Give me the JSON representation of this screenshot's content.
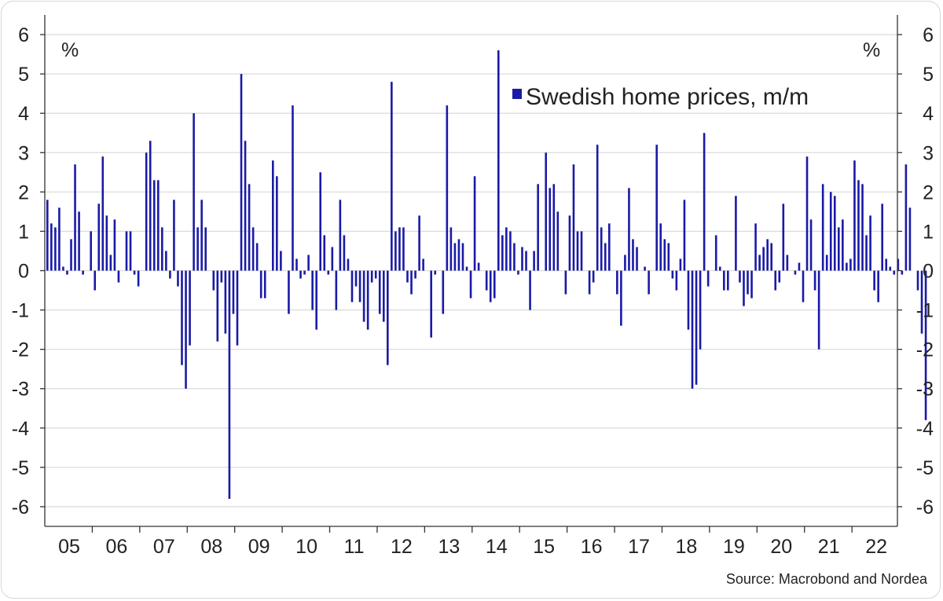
{
  "chart_data": {
    "type": "bar",
    "unit_left": "%",
    "unit_right": "%",
    "source": "Source: Macrobond and Nordea",
    "ylim": [
      -6.5,
      6.5
    ],
    "y_ticks": [
      6,
      5,
      4,
      3,
      2,
      1,
      0,
      -1,
      -2,
      -3,
      -4,
      -5,
      -6
    ],
    "x_tick_labels": [
      "05",
      "06",
      "07",
      "08",
      "09",
      "10",
      "11",
      "12",
      "13",
      "14",
      "15",
      "16",
      "17",
      "18",
      "19",
      "20",
      "21",
      "22"
    ],
    "grid": true,
    "legend_position": "top-right",
    "bar_color": "#1a1aa6",
    "series": [
      {
        "name": "Swedish home prices, m/m",
        "start": "2005-01",
        "values": [
          1.8,
          1.2,
          1.1,
          1.6,
          0.1,
          -0.1,
          0.8,
          2.7,
          1.5,
          -0.1,
          0.0,
          1.0,
          -0.5,
          1.7,
          2.9,
          1.4,
          0.4,
          1.3,
          -0.3,
          0.0,
          1.0,
          1.0,
          -0.1,
          -0.4,
          0.0,
          3.0,
          3.3,
          2.3,
          2.3,
          1.1,
          0.5,
          -0.2,
          1.8,
          -0.4,
          -2.4,
          -3.0,
          -1.9,
          4.0,
          1.1,
          1.8,
          1.1,
          0.0,
          -0.5,
          -1.8,
          -0.3,
          -1.6,
          -5.8,
          -1.1,
          -1.9,
          5.0,
          3.3,
          2.2,
          1.1,
          0.7,
          -0.7,
          -0.7,
          0.0,
          2.8,
          2.4,
          0.5,
          0.0,
          -1.1,
          4.2,
          0.3,
          -0.2,
          -0.1,
          0.4,
          -1.0,
          -1.5,
          2.5,
          0.9,
          -0.1,
          0.6,
          -1.0,
          1.8,
          0.9,
          0.3,
          -0.8,
          -0.4,
          -0.8,
          -1.3,
          -1.5,
          -0.3,
          -0.2,
          -1.1,
          -1.3,
          -2.4,
          4.8,
          1.0,
          1.1,
          1.1,
          -0.3,
          -0.6,
          -0.2,
          1.4,
          0.3,
          0.0,
          -1.7,
          -0.1,
          0.0,
          -1.1,
          4.2,
          1.1,
          0.7,
          0.8,
          0.7,
          0.1,
          -0.7,
          2.4,
          0.2,
          0.0,
          -0.5,
          -0.8,
          -0.7,
          5.6,
          0.9,
          1.1,
          1.0,
          0.7,
          -0.1,
          0.6,
          0.5,
          -1.0,
          0.5,
          2.2,
          0.0,
          3.0,
          2.1,
          2.2,
          1.5,
          0.0,
          -0.6,
          1.4,
          2.7,
          1.0,
          1.0,
          0.0,
          -0.6,
          -0.3,
          3.2,
          1.1,
          0.7,
          1.2,
          0.0,
          -0.6,
          -1.4,
          0.4,
          2.1,
          0.8,
          0.6,
          0.0,
          0.1,
          -0.6,
          0.0,
          3.2,
          1.2,
          0.8,
          0.7,
          -0.2,
          -0.5,
          0.3,
          1.8,
          -1.5,
          -3.0,
          -2.9,
          -2.0,
          3.5,
          -0.4,
          0.0,
          0.9,
          0.1,
          -0.5,
          -0.5,
          0.0,
          1.9,
          -0.3,
          -0.9,
          -0.6,
          -0.7,
          1.2,
          0.4,
          0.6,
          0.8,
          0.7,
          -0.5,
          -0.3,
          1.7,
          0.4,
          0.0,
          -0.1,
          0.2,
          -0.8,
          2.9,
          1.3,
          -0.5,
          -2.0,
          2.2,
          0.4,
          2.0,
          1.9,
          1.1,
          1.3,
          0.2,
          0.3,
          2.8,
          2.3,
          2.2,
          0.9,
          1.4,
          -0.5,
          -0.8,
          1.7,
          0.3,
          0.1,
          -0.1,
          0.3,
          -0.1,
          2.7,
          1.6,
          0.0,
          -0.5,
          -1.6,
          -3.8
        ]
      }
    ]
  }
}
